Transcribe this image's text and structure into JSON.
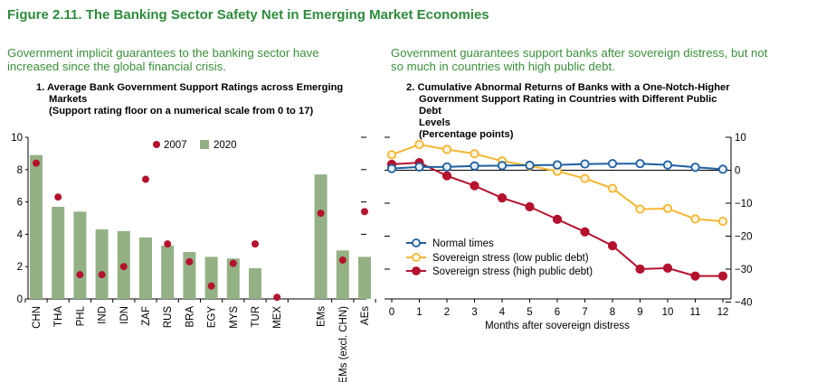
{
  "figure": {
    "title": "Figure 2.11. The Banking Sector Safety Net in Emerging Market Economies",
    "left_subtitle": "Government implicit guarantees to the banking sector have increased since the global financial crisis.",
    "right_subtitle": "Government guarantees support banks after sovereign distress, but not so much in countries with high public debt."
  },
  "colors": {
    "title_green": "#2e8b3c",
    "bar_green": "#94b185",
    "dot_red": "#b4122e",
    "normal_blue": "#1f5fa0",
    "low_debt_yellow": "#f3b731",
    "high_debt_red": "#b4122e"
  },
  "chart_data": [
    {
      "type": "bar",
      "title_line1": "1. Average Bank Government Support Ratings across Emerging",
      "title_line2": "Markets",
      "title_line3": "(Support rating floor on a numerical scale from 0 to 17)",
      "categories": [
        "CHN",
        "THA",
        "PHL",
        "IND",
        "IDN",
        "ZAF",
        "RUS",
        "BRA",
        "EGY",
        "MYS",
        "TUR",
        "MEX",
        "EMs",
        "EMs (excl. CHN)",
        "AEs"
      ],
      "series": [
        {
          "name": "2020",
          "kind": "bar",
          "values": [
            8.9,
            5.7,
            5.4,
            4.3,
            4.2,
            3.8,
            3.3,
            2.9,
            2.6,
            2.5,
            1.9,
            0.0,
            7.7,
            3.0,
            2.6
          ]
        },
        {
          "name": "2007",
          "kind": "dot",
          "values": [
            8.4,
            6.3,
            1.5,
            1.5,
            2.0,
            7.4,
            3.4,
            2.3,
            0.8,
            2.2,
            3.4,
            0.1,
            5.3,
            2.4,
            5.4
          ]
        }
      ],
      "legend": [
        {
          "label": "2007",
          "marker": "dot"
        },
        {
          "label": "2020",
          "marker": "square"
        }
      ],
      "ylim": [
        0,
        10
      ],
      "yticks": [
        "0",
        "2",
        "4",
        "6",
        "8",
        "10"
      ]
    },
    {
      "type": "line",
      "title_line1": "2. Cumulative Abnormal Returns of Banks with a One-Notch-Higher",
      "title_line2": "Government Support Rating in Countries with Different Public Debt",
      "title_line3": "Levels",
      "title_line4": "(Percentage points)",
      "xlabel": "Months after sovereign distress",
      "x": [
        0,
        1,
        2,
        3,
        4,
        5,
        6,
        7,
        8,
        9,
        10,
        11,
        12
      ],
      "xticks": [
        "0",
        "1",
        "2",
        "3",
        "4",
        "5",
        "6",
        "7",
        "8",
        "9",
        "10",
        "11",
        "12"
      ],
      "ylim": [
        -40,
        10
      ],
      "yticks": [
        "10",
        "0",
        "−10",
        "−20",
        "−30",
        "−40"
      ],
      "series": [
        {
          "name": "Normal times",
          "values": [
            0.5,
            1.0,
            1.0,
            1.3,
            1.4,
            1.5,
            1.6,
            1.9,
            2.0,
            2.0,
            1.6,
            0.9,
            0.3
          ]
        },
        {
          "name": "Sovereign stress (low public debt)",
          "values": [
            4.7,
            7.8,
            6.3,
            5.0,
            2.8,
            1.3,
            -0.3,
            -2.5,
            -5.5,
            -11.8,
            -11.6,
            -14.8,
            -15.5
          ]
        },
        {
          "name": "Sovereign stress (high public debt)",
          "values": [
            1.8,
            2.3,
            -1.7,
            -4.7,
            -8.4,
            -11.1,
            -14.9,
            -18.7,
            -22.9,
            -30.0,
            -29.7,
            -32.1,
            -32.1
          ]
        }
      ]
    }
  ]
}
